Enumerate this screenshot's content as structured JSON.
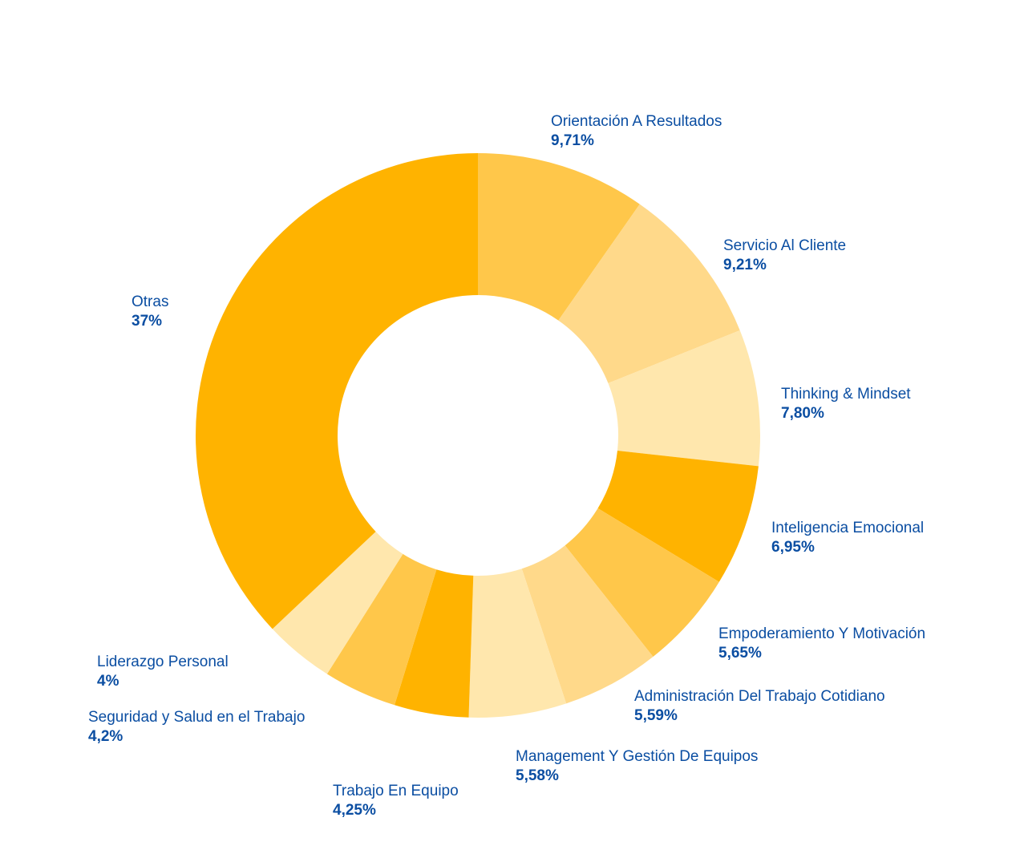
{
  "chart_data": {
    "type": "pie",
    "donut": true,
    "title": "",
    "slices": [
      {
        "label": "Orientación A Resultados",
        "value": 9.71,
        "display": "9,71%",
        "color": "#ffc74a"
      },
      {
        "label": "Servicio Al Cliente",
        "value": 9.21,
        "display": "9,21%",
        "color": "#ffd98a"
      },
      {
        "label": "Thinking & Mindset",
        "value": 7.8,
        "display": "7,80%",
        "color": "#ffe7ad"
      },
      {
        "label": "Inteligencia Emocional",
        "value": 6.95,
        "display": "6,95%",
        "color": "#ffb300"
      },
      {
        "label": "Empoderamiento Y Motivación",
        "value": 5.65,
        "display": "5,65%",
        "color": "#ffc74a"
      },
      {
        "label": "Administración Del Trabajo Cotidiano",
        "value": 5.59,
        "display": "5,59%",
        "color": "#ffd98a"
      },
      {
        "label": "Management Y Gestión De Equipos",
        "value": 5.58,
        "display": "5,58%",
        "color": "#ffe7ad"
      },
      {
        "label": "Trabajo En Equipo",
        "value": 4.25,
        "display": "4,25%",
        "color": "#ffb300"
      },
      {
        "label": "Seguridad y Salud en el Trabajo",
        "value": 4.2,
        "display": "4,2%",
        "color": "#ffc74a"
      },
      {
        "label": "Liderazgo Personal",
        "value": 4,
        "display": "4%",
        "color": "#ffe7ad"
      },
      {
        "label": "Otras",
        "value": 37,
        "display": "37%",
        "color": "#ffb300"
      }
    ],
    "label_color": "#0b4ea2"
  }
}
